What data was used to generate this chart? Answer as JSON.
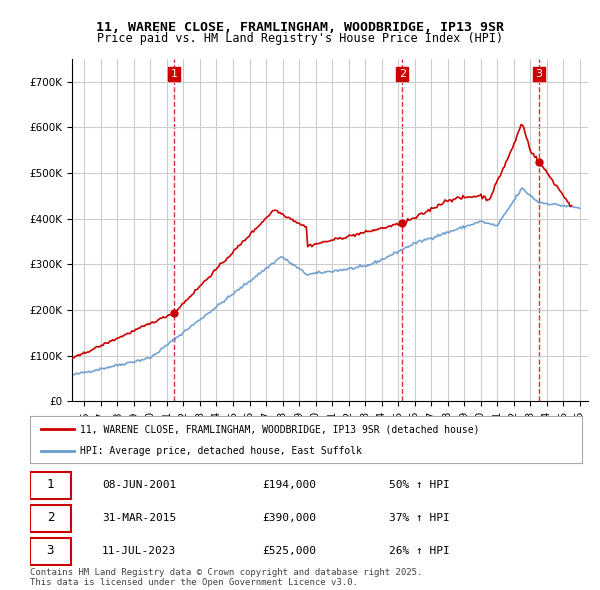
{
  "title_line1": "11, WARENE CLOSE, FRAMLINGHAM, WOODBRIDGE, IP13 9SR",
  "title_line2": "Price paid vs. HM Land Registry's House Price Index (HPI)",
  "ylabel": "",
  "xlabel": "",
  "ylim": [
    0,
    750000
  ],
  "yticks": [
    0,
    100000,
    200000,
    300000,
    400000,
    500000,
    600000,
    700000
  ],
  "ytick_labels": [
    "£0",
    "£100K",
    "£200K",
    "£300K",
    "£400K",
    "£500K",
    "£600K",
    "£700K"
  ],
  "xlim_start": 1995.25,
  "xlim_end": 2026.5,
  "xticks": [
    1995,
    1996,
    1997,
    1998,
    1999,
    2000,
    2001,
    2002,
    2003,
    2004,
    2005,
    2006,
    2007,
    2008,
    2009,
    2010,
    2011,
    2012,
    2013,
    2014,
    2015,
    2016,
    2017,
    2018,
    2019,
    2020,
    2021,
    2022,
    2023,
    2024,
    2025,
    2026
  ],
  "background_color": "#ffffff",
  "plot_bg_color": "#ffffff",
  "grid_color": "#cccccc",
  "red_line_color": "#cc0000",
  "blue_line_color": "#6699cc",
  "vline_color": "#cc0000",
  "sale_points": [
    {
      "year": 2001.44,
      "price": 194000,
      "label": "1"
    },
    {
      "year": 2015.25,
      "price": 390000,
      "label": "2"
    },
    {
      "year": 2023.53,
      "price": 525000,
      "label": "3"
    }
  ],
  "legend_entries": [
    "11, WARENE CLOSE, FRAMLINGHAM, WOODBRIDGE, IP13 9SR (detached house)",
    "HPI: Average price, detached house, East Suffolk"
  ],
  "table_rows": [
    {
      "num": "1",
      "date": "08-JUN-2001",
      "price": "£194,000",
      "change": "50% ↑ HPI"
    },
    {
      "num": "2",
      "date": "31-MAR-2015",
      "price": "£390,000",
      "change": "37% ↑ HPI"
    },
    {
      "num": "3",
      "date": "11-JUL-2023",
      "price": "£525,000",
      "change": "26% ↑ HPI"
    }
  ],
  "footer": "Contains HM Land Registry data © Crown copyright and database right 2025.\nThis data is licensed under the Open Government Licence v3.0."
}
